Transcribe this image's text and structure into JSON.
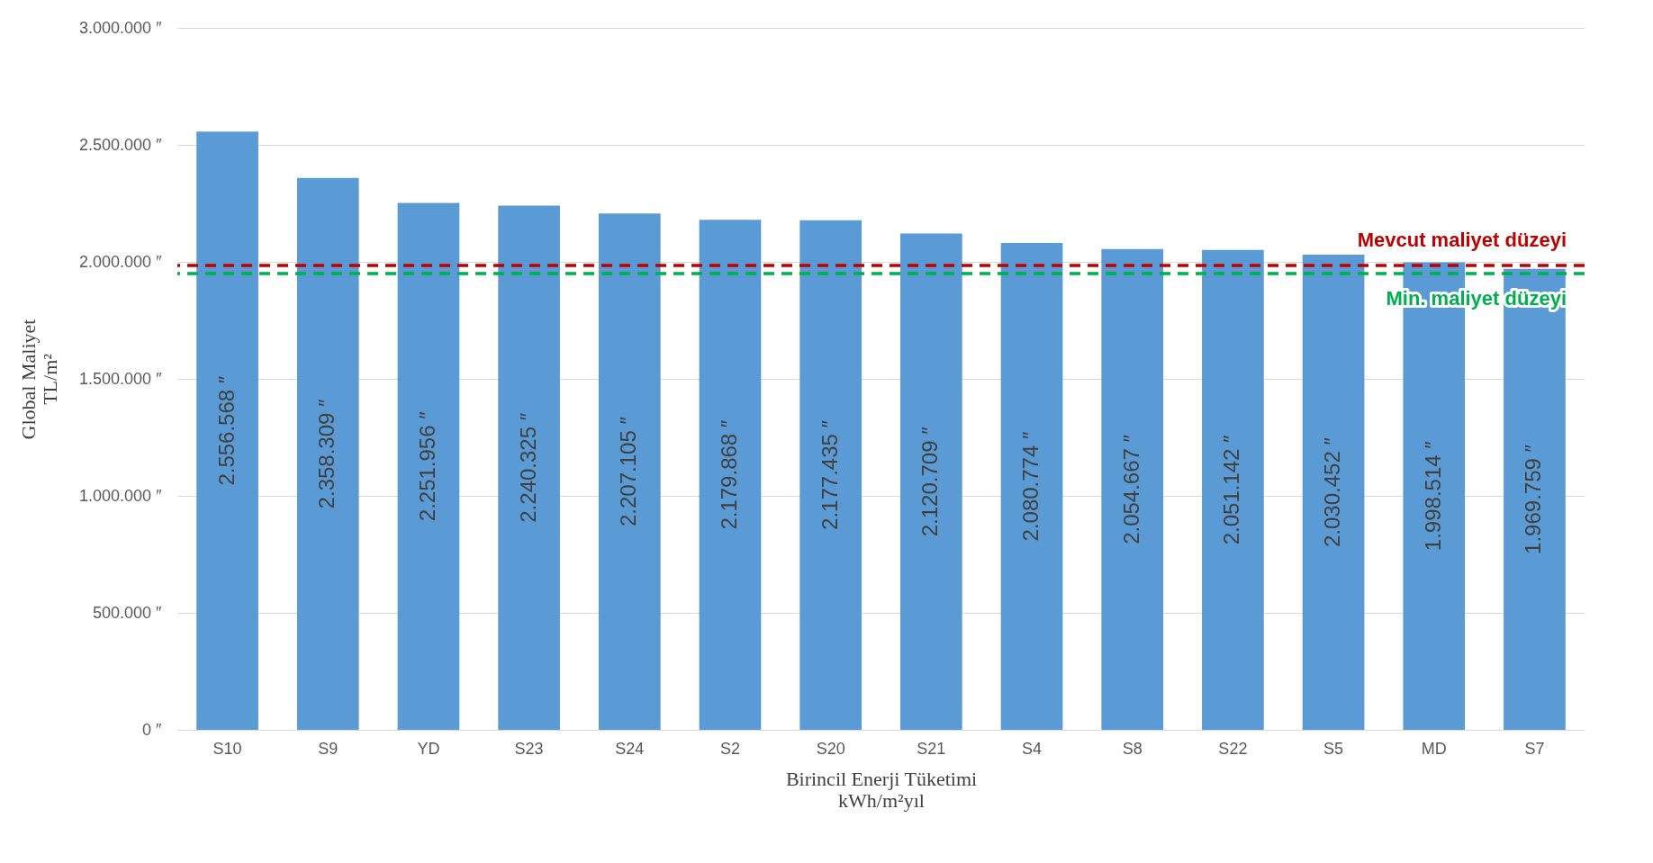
{
  "chart_data": {
    "type": "bar",
    "xlabel": "Birincil Enerji Tüketimi\nkWh/m²yıl",
    "ylabel": "Global Maliyet\nTL/m²",
    "categories": [
      "S10",
      "S9",
      "YD",
      "S23",
      "S24",
      "S2",
      "S20",
      "S21",
      "S4",
      "S8",
      "S22",
      "S5",
      "MD",
      "S7"
    ],
    "values": [
      2556568,
      2358309,
      2251956,
      2240325,
      2207105,
      2179868,
      2177435,
      2120709,
      2080774,
      2054667,
      2051142,
      2030452,
      1998514,
      1969759
    ],
    "value_labels": [
      "2.556.568 ″",
      "2.358.309 ″",
      "2.251.956 ″",
      "2.240.325 ″",
      "2.207.105 ″",
      "2.179.868 ″",
      "2.177.435 ″",
      "2.120.709 ″",
      "2.080.774 ″",
      "2.054.667 ″",
      "2.051.142 ″",
      "2.030.452 ″",
      "1.998.514 ″",
      "1.969.759 ″"
    ],
    "color": "#5b9bd5",
    "ylim": [
      0,
      3000000
    ],
    "yticks": [
      {
        "value": 0,
        "label": "0 ″"
      },
      {
        "value": 500000,
        "label": "500.000 ″"
      },
      {
        "value": 1000000,
        "label": "1.000.000 ″"
      },
      {
        "value": 1500000,
        "label": "1.500.000 ″"
      },
      {
        "value": 2000000,
        "label": "2.000.000 ″"
      },
      {
        "value": 2500000,
        "label": "2.500.000 ″"
      },
      {
        "value": 3000000,
        "label": "3.000.000 ″"
      }
    ],
    "grid": "y",
    "ref_lines": [
      {
        "axis": "y",
        "value": 1985000,
        "label": "Mevcut maliyet düzeyi",
        "color": "#c00000",
        "line_style": "dashed"
      },
      {
        "axis": "y",
        "value": 1950000,
        "label": "Min. maliyet düzeyi",
        "color": "#00b050",
        "line_style": "dashed"
      }
    ]
  }
}
